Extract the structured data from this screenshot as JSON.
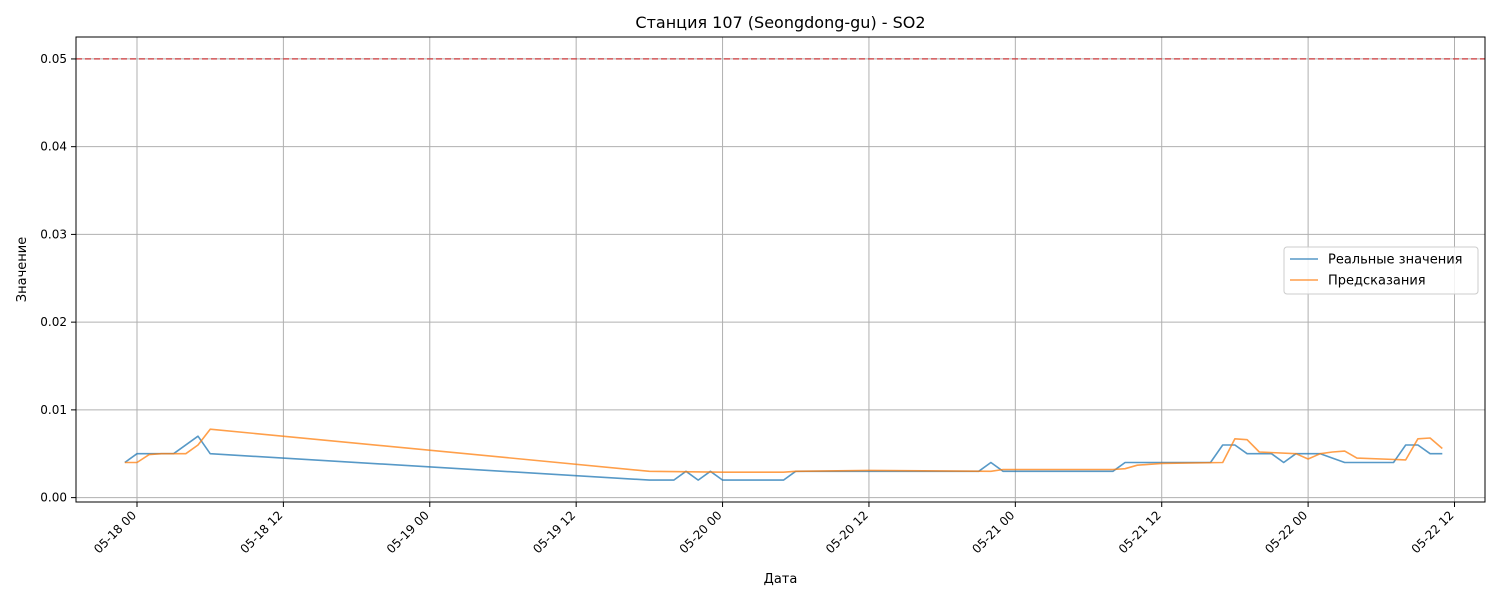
{
  "chart_data": {
    "type": "line",
    "title": "Станция 107 (Seongdong-gu) - SO2",
    "xlabel": "Дата",
    "ylabel": "Значение",
    "ylim": [
      -0.0005,
      0.0525
    ],
    "y_ticks": [
      0.0,
      0.01,
      0.02,
      0.03,
      0.04,
      0.05
    ],
    "y_tick_labels": [
      "0.00",
      "0.01",
      "0.02",
      "0.03",
      "0.04",
      "0.05"
    ],
    "x_range": [
      "2018-05-17 19:00",
      "2018-05-22 14:30"
    ],
    "x_ticks": [
      "2018-05-18 00:00",
      "2018-05-18 12:00",
      "2018-05-19 00:00",
      "2018-05-19 12:00",
      "2018-05-20 00:00",
      "2018-05-20 12:00",
      "2018-05-21 00:00",
      "2018-05-21 12:00",
      "2018-05-22 00:00",
      "2018-05-22 12:00"
    ],
    "x_tick_labels": [
      "05-18 00",
      "05-18 12",
      "05-19 00",
      "05-19 12",
      "05-20 00",
      "05-20 12",
      "05-21 00",
      "05-21 12",
      "05-22 00",
      "05-22 12"
    ],
    "grid": true,
    "legend_position": "center-right",
    "threshold": {
      "value": 0.05,
      "color": "#d62728",
      "style": "dashed"
    },
    "series": [
      {
        "name": "Реальные значения",
        "color": "#1f77b4",
        "points": [
          [
            "2018-05-17 23:00",
            0.004
          ],
          [
            "2018-05-18 00:00",
            0.005
          ],
          [
            "2018-05-18 01:00",
            0.005
          ],
          [
            "2018-05-18 02:00",
            0.005
          ],
          [
            "2018-05-18 03:00",
            0.005
          ],
          [
            "2018-05-18 05:00",
            0.007
          ],
          [
            "2018-05-18 06:00",
            0.005
          ],
          [
            "2018-05-19 18:00",
            0.002
          ],
          [
            "2018-05-19 20:00",
            0.002
          ],
          [
            "2018-05-19 21:00",
            0.003
          ],
          [
            "2018-05-19 22:00",
            0.002
          ],
          [
            "2018-05-19 23:00",
            0.003
          ],
          [
            "2018-05-20 00:00",
            0.002
          ],
          [
            "2018-05-20 05:00",
            0.002
          ],
          [
            "2018-05-20 06:00",
            0.003
          ],
          [
            "2018-05-20 21:00",
            0.003
          ],
          [
            "2018-05-20 22:00",
            0.004
          ],
          [
            "2018-05-20 23:00",
            0.003
          ],
          [
            "2018-05-21 08:00",
            0.003
          ],
          [
            "2018-05-21 09:00",
            0.004
          ],
          [
            "2018-05-21 16:00",
            0.004
          ],
          [
            "2018-05-21 17:00",
            0.006
          ],
          [
            "2018-05-21 18:00",
            0.006
          ],
          [
            "2018-05-21 19:00",
            0.005
          ],
          [
            "2018-05-21 21:00",
            0.005
          ],
          [
            "2018-05-21 22:00",
            0.004
          ],
          [
            "2018-05-21 23:00",
            0.005
          ],
          [
            "2018-05-22 01:00",
            0.005
          ],
          [
            "2018-05-22 03:00",
            0.004
          ],
          [
            "2018-05-22 07:00",
            0.004
          ],
          [
            "2018-05-22 08:00",
            0.006
          ],
          [
            "2018-05-22 09:00",
            0.006
          ],
          [
            "2018-05-22 10:00",
            0.005
          ],
          [
            "2018-05-22 11:00",
            0.005
          ]
        ]
      },
      {
        "name": "Предсказания",
        "color": "#ff7f0e",
        "points": [
          [
            "2018-05-17 23:00",
            0.004
          ],
          [
            "2018-05-18 00:00",
            0.004
          ],
          [
            "2018-05-18 01:00",
            0.0049
          ],
          [
            "2018-05-18 02:00",
            0.005
          ],
          [
            "2018-05-18 04:00",
            0.005
          ],
          [
            "2018-05-18 05:00",
            0.006
          ],
          [
            "2018-05-18 06:00",
            0.0078
          ],
          [
            "2018-05-19 18:00",
            0.003
          ],
          [
            "2018-05-20 00:00",
            0.0029
          ],
          [
            "2018-05-20 05:00",
            0.0029
          ],
          [
            "2018-05-20 06:00",
            0.003
          ],
          [
            "2018-05-20 12:00",
            0.0031
          ],
          [
            "2018-05-20 22:00",
            0.003
          ],
          [
            "2018-05-20 23:00",
            0.0032
          ],
          [
            "2018-05-21 08:00",
            0.0032
          ],
          [
            "2018-05-21 09:00",
            0.0033
          ],
          [
            "2018-05-21 10:00",
            0.0037
          ],
          [
            "2018-05-21 12:00",
            0.0039
          ],
          [
            "2018-05-21 17:00",
            0.004
          ],
          [
            "2018-05-21 18:00",
            0.0067
          ],
          [
            "2018-05-21 19:00",
            0.0066
          ],
          [
            "2018-05-21 20:00",
            0.0052
          ],
          [
            "2018-05-21 23:00",
            0.005
          ],
          [
            "2018-05-22 00:00",
            0.0044
          ],
          [
            "2018-05-22 01:00",
            0.005
          ],
          [
            "2018-05-22 02:00",
            0.0052
          ],
          [
            "2018-05-22 03:00",
            0.0053
          ],
          [
            "2018-05-22 04:00",
            0.0045
          ],
          [
            "2018-05-22 08:00",
            0.0043
          ],
          [
            "2018-05-22 09:00",
            0.0067
          ],
          [
            "2018-05-22 10:00",
            0.0068
          ],
          [
            "2018-05-22 11:00",
            0.0056
          ]
        ]
      }
    ]
  }
}
